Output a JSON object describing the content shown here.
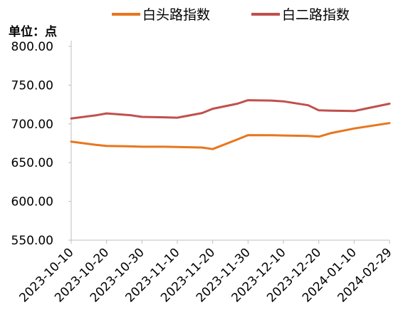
{
  "unit_label": "单位：点",
  "chart_data": {
    "type": "line",
    "categories": [
      "2023-10-10",
      "2023-10-20",
      "2023-10-30",
      "2023-11-10",
      "2023-11-20",
      "2023-11-30",
      "2023-12-10",
      "2023-12-20",
      "2024-01-10",
      "2024-02-29"
    ],
    "x": [
      "2023-10-10",
      "2023-10-17",
      "2023-10-20",
      "2023-10-27",
      "2023-10-30",
      "2023-11-06",
      "2023-11-10",
      "2023-11-17",
      "2023-11-20",
      "2023-11-27",
      "2023-11-30",
      "2023-12-07",
      "2023-12-10",
      "2023-12-17",
      "2023-12-20",
      "2023-12-27",
      "2024-01-10",
      "2024-02-29"
    ],
    "series": [
      {
        "name": "白头路指数",
        "color": "#E8761E",
        "values": [
          677,
          673,
          671.5,
          671,
          670.5,
          670.5,
          670.2,
          669.5,
          667.5,
          680,
          685.5,
          685.3,
          685,
          684.5,
          683.5,
          688,
          694,
          701
        ]
      },
      {
        "name": "白二路指数",
        "color": "#C0504D",
        "values": [
          707,
          711,
          713.5,
          711,
          709,
          708.5,
          708,
          714,
          719.5,
          726,
          730.5,
          730,
          729,
          724,
          717.5,
          717,
          716.5,
          726
        ]
      }
    ],
    "ylim": [
      550,
      800
    ],
    "yticks": [
      "550.00",
      "600.00",
      "650.00",
      "700.00",
      "750.00",
      "800.00"
    ],
    "legend": "top-center",
    "grid": false
  }
}
